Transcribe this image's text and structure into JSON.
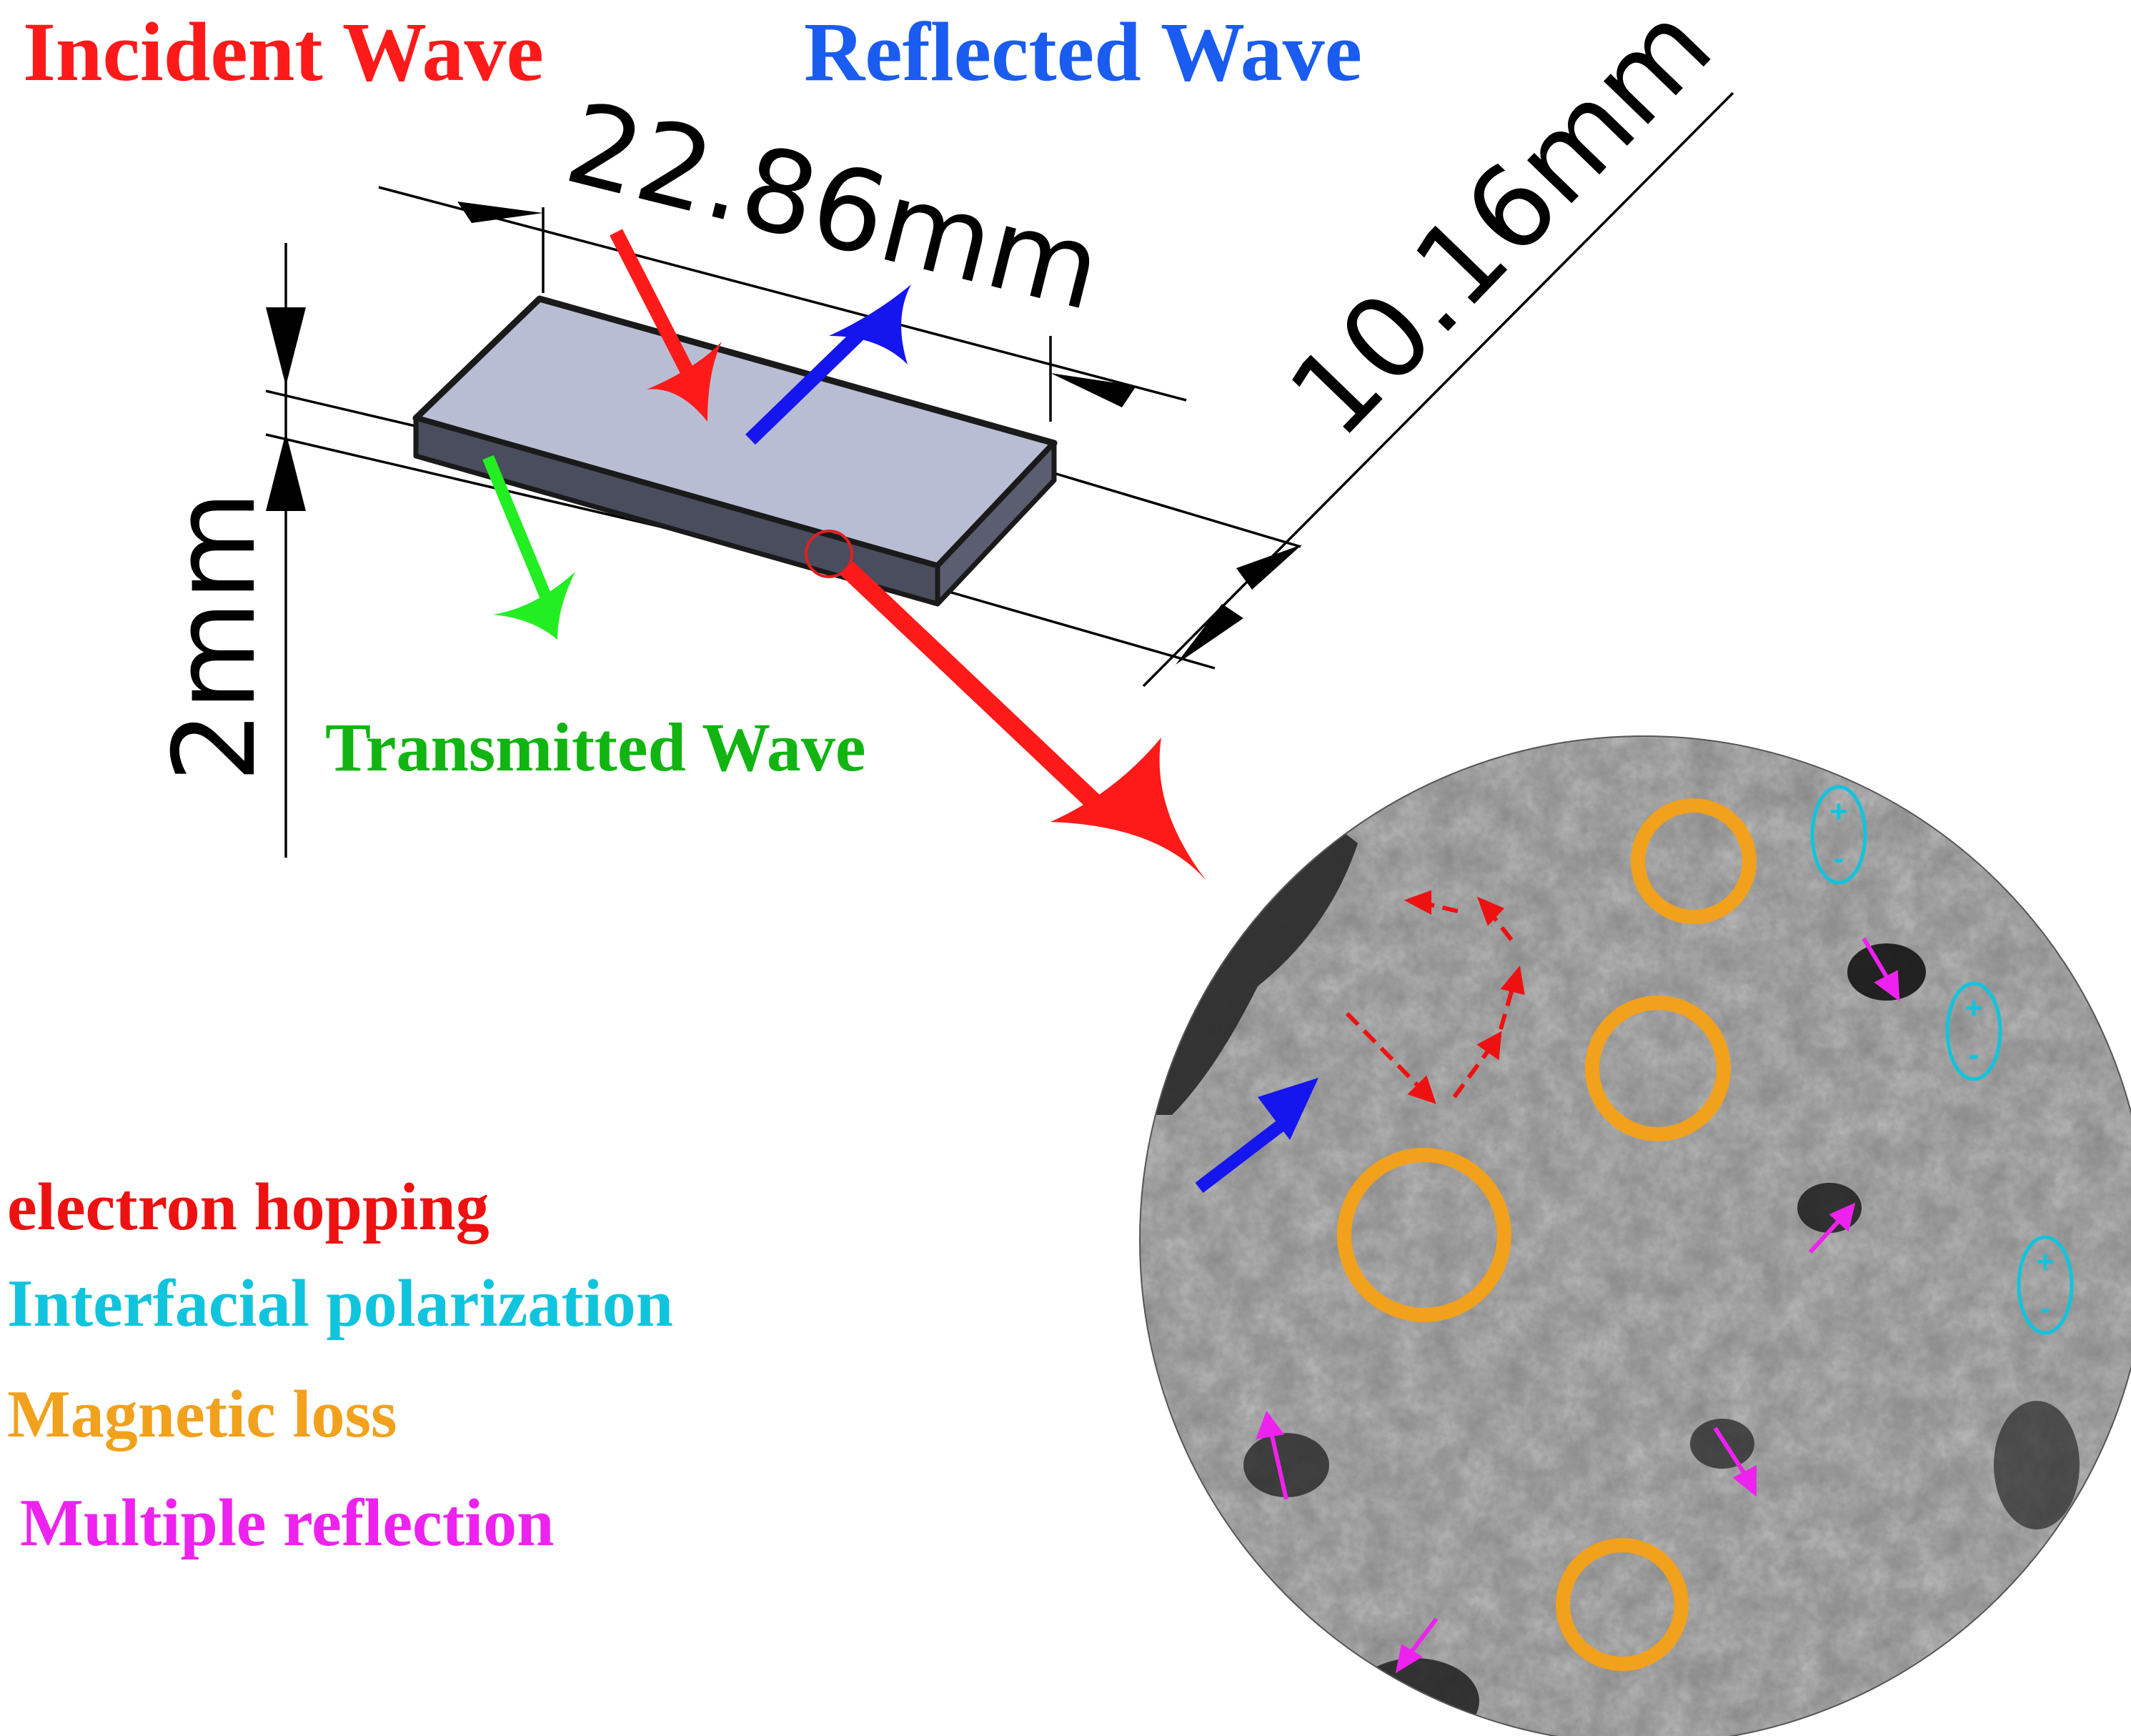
{
  "wave_labels": {
    "incident": "Incident Wave",
    "reflected": "Reflected Wave",
    "transmitted": "Transmitted Wave"
  },
  "dimensions": {
    "length": "22.86mm",
    "width": "10.16mm",
    "thickness": "2mm"
  },
  "legend": [
    {
      "label": "electron hopping",
      "color": "#ee1111"
    },
    {
      "label": "Interfacial polarization",
      "color": "#11c4dd"
    },
    {
      "label": "Magnetic loss",
      "color": "#f2a11c"
    },
    {
      "label": "Multiple reflection",
      "color": "#ee22ee"
    }
  ],
  "micrograph": {
    "charge_symbols": {
      "plus": "+",
      "minus": "-"
    }
  },
  "colors": {
    "incident": "#ff1a1a",
    "reflected": "#1515ee",
    "transmitted": "#22ee22",
    "transmitted_text": "#11b411",
    "electron_hopping": "#ee1111",
    "polarization": "#11c4dd",
    "magnetic_loss": "#f2a11c",
    "multiple_reflection": "#ee22ee",
    "sample_top": "#b9bdd3",
    "sample_edge": "#4a4d5e"
  },
  "icons": [
    "incident-arrow",
    "reflected-arrow",
    "transmitted-arrow",
    "magnify-arrow",
    "dimension-arrows"
  ]
}
